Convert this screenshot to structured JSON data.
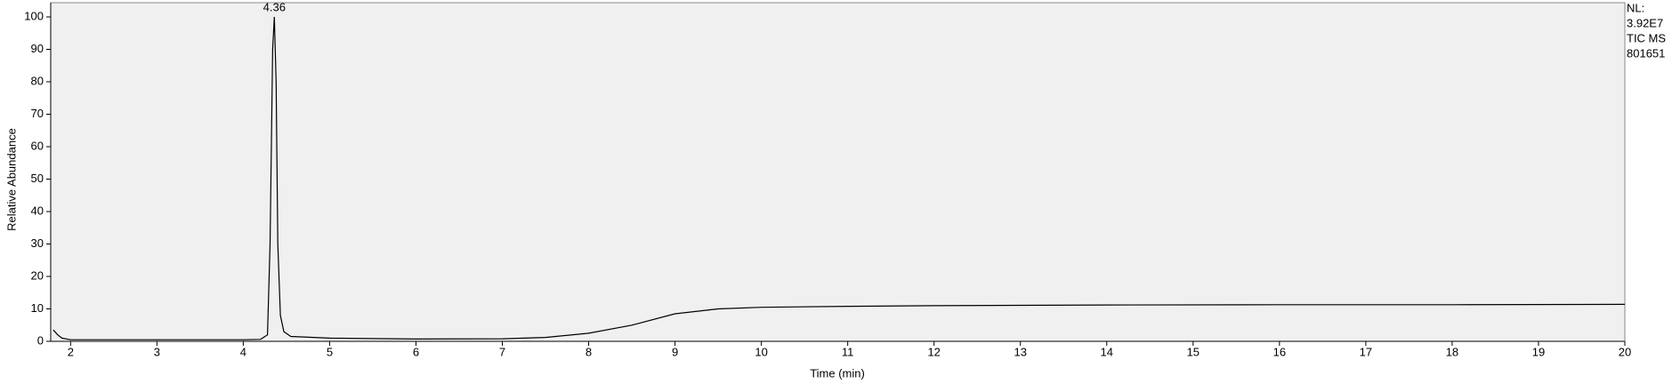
{
  "chart_data": {
    "type": "line",
    "x_label": "Time (min)",
    "y_label": "Relative Abundance",
    "info": [
      "NL:",
      "3.92E7",
      "TIC  MS",
      "801651"
    ],
    "annotations": [
      {
        "label": "4.36",
        "x": 4.36,
        "y": 100
      }
    ],
    "color": "#000000",
    "x": [
      1.8,
      1.85,
      1.9,
      2.0,
      3.0,
      4.0,
      4.2,
      4.28,
      4.31,
      4.34,
      4.36,
      4.38,
      4.4,
      4.43,
      4.47,
      4.55,
      5.0,
      6.0,
      7.0,
      7.5,
      8.0,
      8.5,
      9.0,
      9.5,
      10.0,
      11.0,
      12.0,
      14.0,
      16.0,
      18.0,
      20.0
    ],
    "values": [
      3.5,
      2,
      1,
      0.5,
      0.5,
      0.5,
      0.6,
      2,
      30,
      90,
      100,
      80,
      30,
      8,
      3,
      1.5,
      1,
      0.7,
      0.8,
      1.2,
      2.5,
      5,
      8.5,
      10,
      10.5,
      10.8,
      11,
      11.2,
      11.3,
      11.3,
      11.4
    ],
    "xlim": [
      1.77,
      20
    ],
    "ylim": [
      0,
      100
    ],
    "xticks": [
      2,
      3,
      4,
      5,
      6,
      7,
      8,
      9,
      10,
      11,
      12,
      13,
      14,
      15,
      16,
      17,
      18,
      19,
      20
    ],
    "yticks": [
      0,
      10,
      20,
      30,
      40,
      50,
      60,
      70,
      80,
      90,
      100
    ]
  }
}
